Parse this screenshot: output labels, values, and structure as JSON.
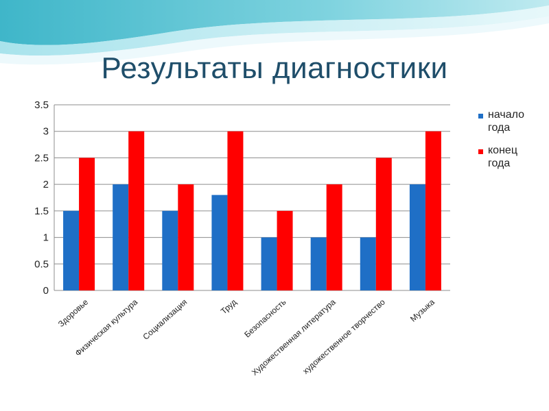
{
  "slide": {
    "title": "Результаты диагностики"
  },
  "colors": {
    "series_start": "#1f6fc6",
    "series_end": "#ff0000",
    "grid": "#8c8c8c",
    "title": "#1f4e6a"
  },
  "chart_data": {
    "type": "bar",
    "categories": [
      "Здоровье",
      "Физическая культура",
      "Социализация",
      "Труд",
      "Безопасность",
      "Художественная литература",
      "художественное творчество",
      "Музыка"
    ],
    "series": [
      {
        "name": "начало года",
        "name_lines": [
          "начало",
          "года"
        ],
        "values": [
          1.5,
          2,
          1.5,
          1.8,
          1,
          1,
          1,
          2
        ]
      },
      {
        "name": "конец года",
        "name_lines": [
          "конец",
          "года"
        ],
        "values": [
          2.5,
          3,
          2,
          3,
          1.5,
          2,
          2.5,
          3
        ]
      }
    ],
    "yticks": [
      "0",
      "0.5",
      "1",
      "1.5",
      "2",
      "2.5",
      "3",
      "3.5"
    ],
    "ylim": [
      0,
      3.5
    ],
    "grid": true,
    "legend_position": "right"
  }
}
